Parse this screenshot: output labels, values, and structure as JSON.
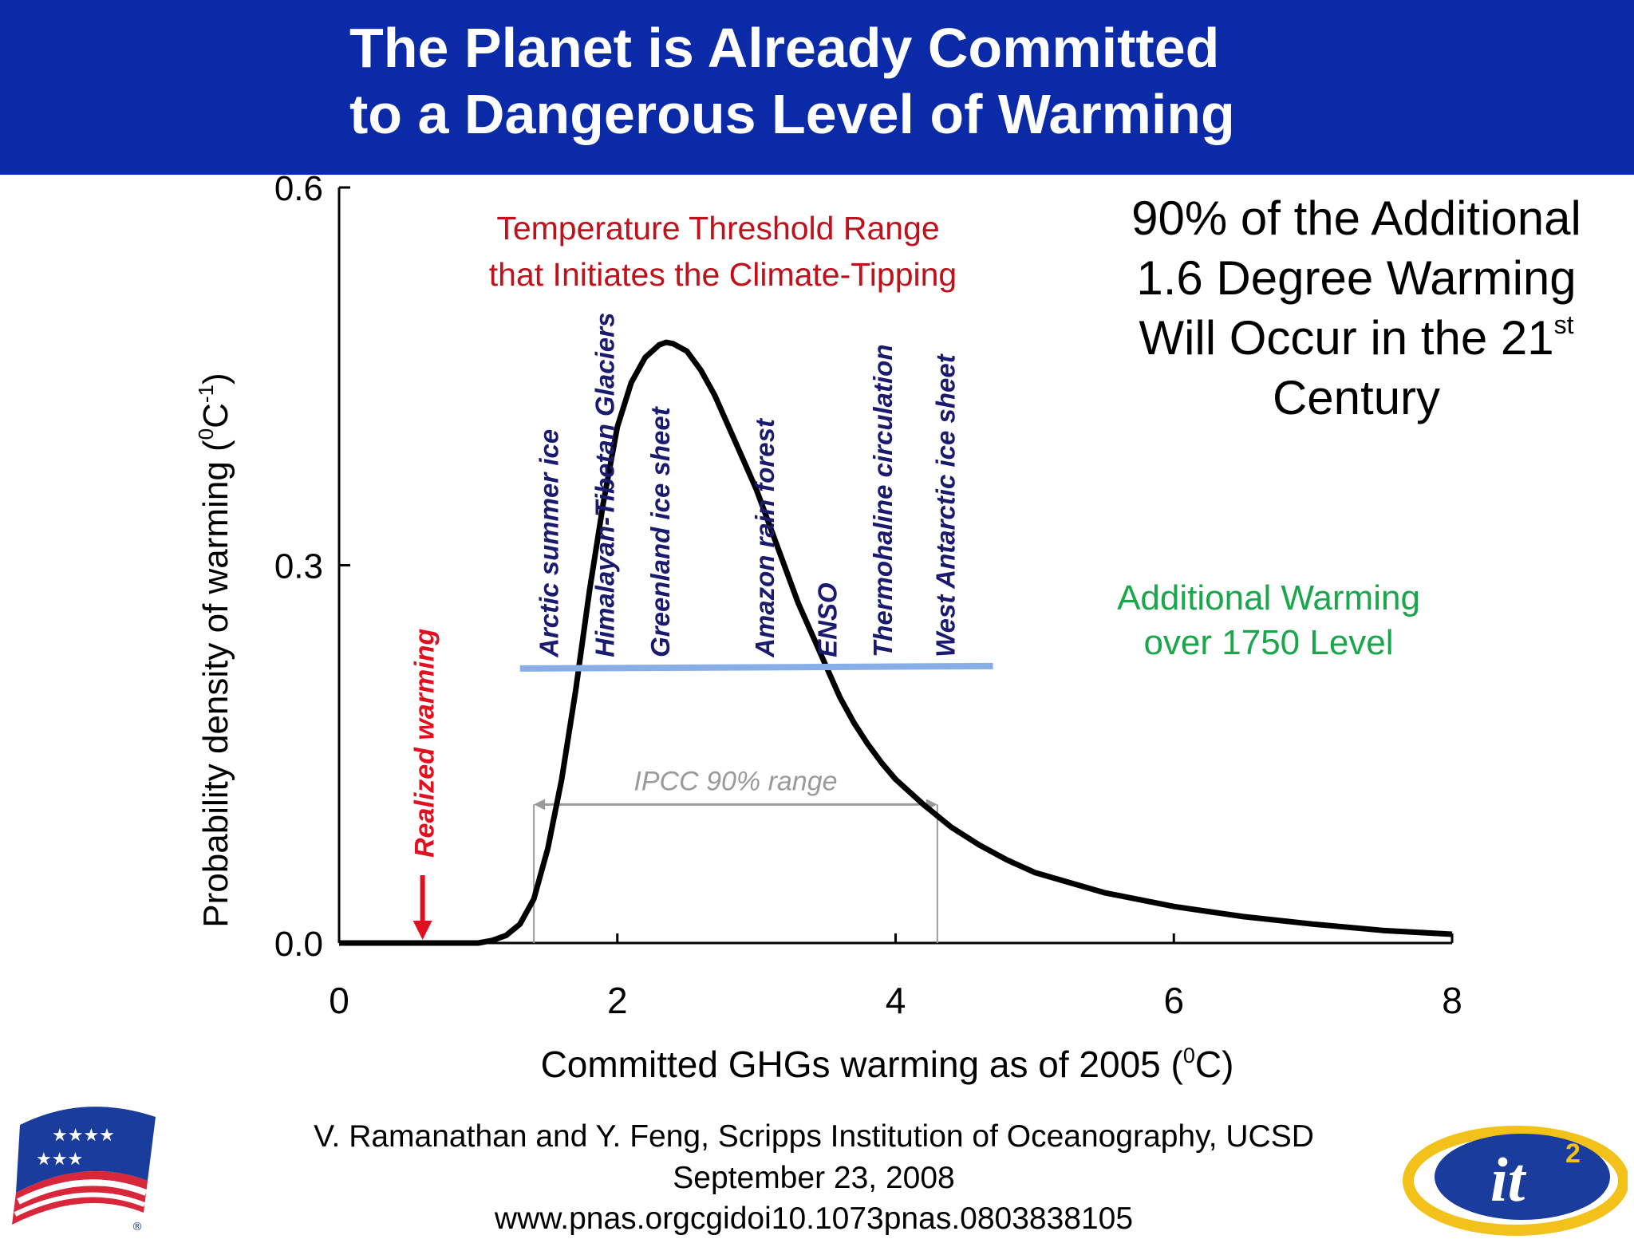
{
  "slide": {
    "title_line1": "The Planet is Already Committed",
    "title_line2": "to a Dangerous Level of Warming",
    "right_note": {
      "line1": "90% of the Additional",
      "line2": "1.6 Degree Warming",
      "line3": "Will Occur in the 21",
      "line3_sup": "st",
      "line4": "Century"
    },
    "green_note": {
      "line1": "Additional Warming",
      "line2": "over 1750 Level"
    },
    "citation": {
      "line1": "V. Ramanathan and Y. Feng, Scripps Institution of Oceanography, UCSD",
      "line2": "September 23, 2008",
      "line3": "www.pnas.orgcgidoi10.1073pnas.0803838105"
    },
    "logos": {
      "left": "flag-ribbon-logo",
      "right": "it2-logo",
      "right_text": "it",
      "right_sup": "2",
      "left_mark": "®"
    },
    "colors": {
      "header_bg": "#0a2aa8",
      "tipping_label": "#c0101a",
      "element_labels": "#1a1a6e",
      "threshold_line": "#88aee8",
      "realized": "#e01020",
      "green_text": "#1aa64a",
      "ipcc": "#9a9a9a"
    }
  },
  "chart_data": {
    "type": "line",
    "xlabel": "Committed GHGs warming as of 2005 (",
    "xlabel_sup": "0",
    "xlabel_tail": "C)",
    "ylabel": "Probability density of warming (",
    "ylabel_sup1": "0",
    "ylabel_mid": "C",
    "ylabel_sup2": "-1",
    "ylabel_tail": ")",
    "xlim": [
      0,
      8
    ],
    "ylim": [
      0,
      0.6
    ],
    "x_ticks": [
      0,
      2,
      4,
      6,
      8
    ],
    "y_ticks": [
      0.0,
      0.3,
      0.6
    ],
    "y_tick_labels": [
      "0.0",
      "0.3",
      "0.6"
    ],
    "series": [
      {
        "x": [
          0,
          0.5,
          1.0,
          1.1,
          1.2,
          1.3,
          1.4,
          1.5,
          1.6,
          1.7,
          1.8,
          1.9,
          2.0,
          2.1,
          2.2,
          2.3,
          2.35,
          2.4,
          2.5,
          2.6,
          2.7,
          2.8,
          2.9,
          3.0,
          3.1,
          3.2,
          3.3,
          3.4,
          3.5,
          3.6,
          3.7,
          3.8,
          3.9,
          4.0,
          4.2,
          4.4,
          4.6,
          4.8,
          5.0,
          5.5,
          6.0,
          6.5,
          7.0,
          7.5,
          8.0
        ],
        "y": [
          0,
          0,
          0.0,
          0.002,
          0.006,
          0.015,
          0.035,
          0.075,
          0.13,
          0.2,
          0.28,
          0.35,
          0.41,
          0.445,
          0.465,
          0.475,
          0.477,
          0.476,
          0.47,
          0.455,
          0.435,
          0.41,
          0.385,
          0.36,
          0.33,
          0.3,
          0.27,
          0.245,
          0.22,
          0.195,
          0.175,
          0.158,
          0.143,
          0.13,
          0.11,
          0.092,
          0.078,
          0.066,
          0.056,
          0.04,
          0.029,
          0.021,
          0.015,
          0.01,
          0.007
        ]
      }
    ],
    "threshold_label_line1": "Temperature Threshold Range",
    "threshold_label_line2": "that Initiates the Climate-Tipping",
    "threshold_line": {
      "x_start": 1.3,
      "x_end": 4.7,
      "y": 0.218
    },
    "tipping_elements": [
      {
        "label": "Arctic summer ice",
        "x": 1.5
      },
      {
        "label": "Himalayan-Tibetan Glaciers",
        "x": 1.9
      },
      {
        "label": "Greenland ice sheet",
        "x": 2.3
      },
      {
        "label": "Amazon rain forest",
        "x": 3.05
      },
      {
        "label": "ENSO",
        "x": 3.5
      },
      {
        "label": "Thermohaline circulation",
        "x": 3.9
      },
      {
        "label": "West Antarctic ice sheet",
        "x": 4.35
      }
    ],
    "ipcc_range": {
      "label": "IPCC 90% range",
      "x_start": 1.4,
      "x_end": 4.3,
      "y": 0.11
    },
    "realized_warming": {
      "label": "Realized warming",
      "x": 0.6
    }
  }
}
